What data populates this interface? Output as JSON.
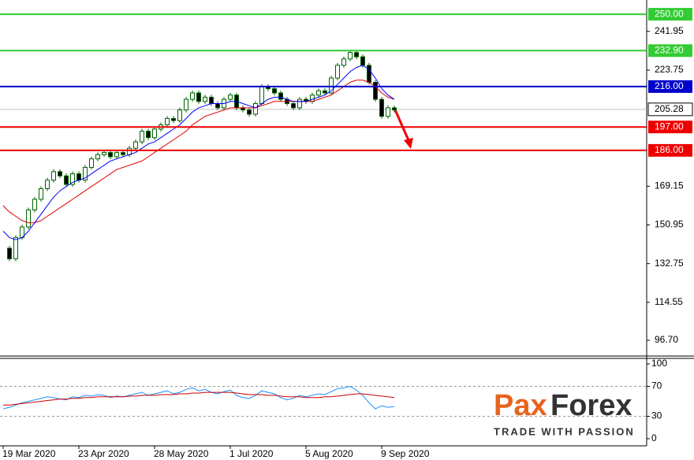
{
  "chart_data": [
    {
      "type": "candlestick",
      "categories": [
        "19 Mar 2020",
        null,
        null,
        null,
        null,
        null,
        null,
        null,
        null,
        null,
        null,
        null,
        "23 Apr 2020",
        null,
        null,
        null,
        null,
        null,
        null,
        null,
        null,
        null,
        null,
        null,
        "28 May 2020",
        null,
        null,
        null,
        null,
        null,
        null,
        null,
        null,
        null,
        null,
        null,
        "1 Jul 2020",
        null,
        null,
        null,
        null,
        null,
        null,
        null,
        null,
        null,
        null,
        null,
        "5 Aug 2020",
        null,
        null,
        null,
        null,
        null,
        null,
        null,
        null,
        null,
        null,
        null,
        "9 Sep 2020",
        null,
        null
      ],
      "close": [
        140,
        135,
        145,
        150,
        158,
        163,
        168,
        172,
        176,
        174,
        170,
        175,
        172,
        178,
        182,
        184,
        185,
        183,
        185,
        184,
        187,
        190,
        195,
        192,
        196,
        198,
        201,
        200,
        205,
        210,
        213,
        209,
        211,
        208,
        206,
        210,
        212,
        206,
        205,
        203,
        208,
        216,
        215,
        213,
        210,
        208,
        206,
        210,
        209,
        212,
        214,
        213,
        220,
        226,
        229,
        232,
        230,
        226,
        218,
        210,
        202,
        206,
        205
      ],
      "ma_fast": {
        "color": "#0000ff",
        "values": [
          148,
          145,
          144,
          145,
          148,
          152,
          156,
          160,
          164,
          167,
          169,
          171,
          172,
          173,
          175,
          177,
          179,
          181,
          182,
          183,
          184,
          185,
          187,
          189,
          190,
          192,
          194,
          196,
          198,
          201,
          204,
          206,
          207,
          208,
          208,
          208,
          209,
          209,
          208,
          207,
          206,
          208,
          210,
          211,
          211,
          210,
          209,
          209,
          209,
          210,
          211,
          212,
          214,
          217,
          220,
          223,
          225,
          226,
          224,
          220,
          215,
          212,
          210
        ]
      },
      "ma_slow": {
        "color": "#e00000",
        "values": [
          160,
          157,
          155,
          153,
          152,
          152,
          153,
          155,
          157,
          159,
          161,
          163,
          165,
          167,
          169,
          171,
          173,
          175,
          177,
          178,
          179,
          180,
          181,
          183,
          185,
          187,
          189,
          191,
          193,
          195,
          198,
          200,
          202,
          203,
          204,
          205,
          206,
          206,
          206,
          206,
          206,
          207,
          208,
          209,
          209,
          209,
          209,
          209,
          209,
          209,
          210,
          211,
          212,
          214,
          216,
          218,
          219,
          219,
          218,
          216,
          213,
          211,
          210
        ]
      },
      "levels": [
        {
          "value": 250,
          "label": "250.00",
          "color": "#33cc33"
        },
        {
          "value": 232.9,
          "label": "232.90",
          "color": "#33cc33"
        },
        {
          "value": 216,
          "label": "216.00",
          "color": "#0000cc"
        },
        {
          "value": 197,
          "label": "197.00",
          "color": "#ee0000"
        },
        {
          "value": 186,
          "label": "186.00",
          "color": "#ee0000"
        }
      ],
      "last_price": {
        "value": 205.28,
        "label": "205.28"
      },
      "ylim": [
        89.3,
        256.7
      ],
      "yticks": [
        {
          "value": 96.7,
          "label": "96.70"
        },
        {
          "value": 114.55,
          "label": "114.55"
        },
        {
          "value": 132.75,
          "label": "132.75"
        },
        {
          "value": 150.95,
          "label": "150.95"
        },
        {
          "value": 169.15,
          "label": "169.15"
        },
        {
          "value": 223.75,
          "label": "223.75"
        },
        {
          "value": 241.95,
          "label": "241.95"
        }
      ]
    },
    {
      "type": "oscillator",
      "series": [
        {
          "color": "#1e90ff",
          "values": [
            40,
            42,
            45,
            48,
            50,
            52,
            54,
            56,
            55,
            53,
            52,
            56,
            55,
            58,
            57,
            59,
            58,
            55,
            57,
            56,
            58,
            60,
            62,
            58,
            60,
            62,
            64,
            60,
            62,
            66,
            68,
            64,
            66,
            62,
            60,
            63,
            65,
            58,
            55,
            54,
            58,
            64,
            62,
            60,
            55,
            52,
            54,
            58,
            56,
            58,
            60,
            59,
            63,
            67,
            68,
            70,
            65,
            58,
            48,
            40,
            44,
            42,
            43
          ]
        },
        {
          "color": "#cc0000",
          "values": [
            45,
            45,
            46,
            47,
            48,
            49,
            50,
            51,
            52,
            53,
            53,
            54,
            54,
            55,
            55,
            56,
            56,
            56,
            56,
            56,
            57,
            57,
            58,
            58,
            58,
            59,
            59,
            59,
            60,
            60,
            61,
            61,
            62,
            62,
            62,
            62,
            62,
            61,
            60,
            59,
            59,
            59,
            58,
            58,
            57,
            56,
            56,
            56,
            55,
            55,
            55,
            56,
            56,
            57,
            58,
            59,
            60,
            60,
            59,
            58,
            57,
            56,
            55
          ]
        }
      ],
      "levels": [
        30,
        70
      ],
      "ylim": [
        -9.5,
        107.4
      ],
      "yticks": [
        0,
        30,
        70,
        100
      ]
    }
  ],
  "logo": {
    "part1": "Pax",
    "part2": "Forex",
    "tagline": "TRADE WITH PASSION"
  }
}
